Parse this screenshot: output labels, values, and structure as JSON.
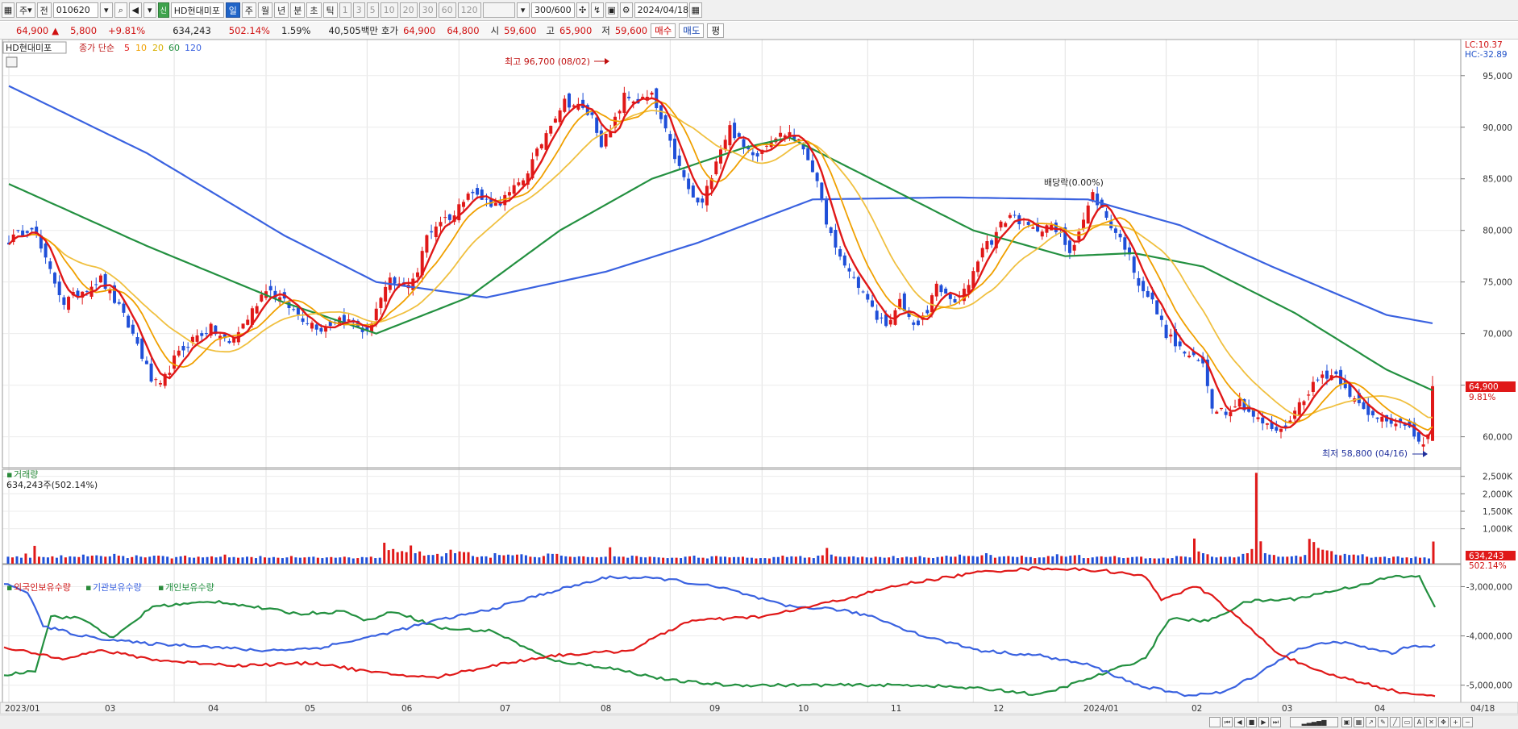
{
  "toolbar": {
    "period_type": "주",
    "market": "전",
    "code": "010620",
    "stock_name": "HD현대미포",
    "intervals": [
      "일",
      "주",
      "월",
      "년",
      "분",
      "초",
      "틱"
    ],
    "active_interval": "일",
    "minute_options": [
      "1",
      "3",
      "5",
      "10",
      "20",
      "30",
      "60",
      "120"
    ],
    "count": "300/600",
    "date": "2024/04/18"
  },
  "quote": {
    "price": "64,900",
    "change_arrow": "▲",
    "change": "5,800",
    "change_pct": "+9.81%",
    "volume": "634,243",
    "volume_ratio": "502.14%",
    "turnover": "1.59%",
    "amount": "40,505백만",
    "bid_label": "호가",
    "bid": "64,900",
    "ask": "64,800",
    "open_label": "시",
    "open": "59,600",
    "high_label": "고",
    "high": "65,900",
    "low_label": "저",
    "low": "59,600",
    "buy_label": "매수",
    "sell_label": "매도",
    "eval_label": "평"
  },
  "price_panel": {
    "legend_name": "HD현대미포",
    "legend_ma_title": "종가 단순",
    "ma_periods": [
      "5",
      "10",
      "20",
      "60",
      "120"
    ],
    "ma_colors": [
      "#e01818",
      "#f0a000",
      "#f0c040",
      "#239040",
      "#3a62e0"
    ],
    "lc": "LC:10.37",
    "hc": "HC:-32.89",
    "high_annotation": "최고 96,700 (08/02)",
    "low_annotation": "최저 58,800 (04/16)",
    "dividend_annotation": "배당락(0.00%)",
    "last_price_tag": "64,900",
    "last_pct_tag": "9.81%"
  },
  "volume_panel": {
    "title": "거래량",
    "value": "634,243주(502.14%)",
    "last_tag": "634,243",
    "last_pct_tag": "502.14%"
  },
  "holdings_panel": {
    "legend": [
      "외국인보유수량",
      "기관보유수량",
      "개인보유수량"
    ],
    "colors": [
      "#e01818",
      "#3a62e0",
      "#239040"
    ]
  },
  "chart_data": {
    "type": "candlestick",
    "x_labels": [
      "2023/01",
      "03",
      "04",
      "05",
      "06",
      "07",
      "08",
      "09",
      "10",
      "11",
      "12",
      "2024/01",
      "02",
      "03",
      "04",
      "04/18"
    ],
    "price_axis": {
      "ticks": [
        60000,
        65000,
        70000,
        75000,
        80000,
        85000,
        90000,
        95000
      ],
      "labels": [
        "60,000",
        "65,000",
        "70,000",
        "75,000",
        "80,000",
        "85,000",
        "90,000",
        "95,000"
      ],
      "range": [
        57000,
        98500
      ]
    },
    "volume_axis": {
      "ticks": [
        1000000,
        1500000,
        2000000,
        2500000
      ],
      "labels": [
        "1,000K",
        "1,500K",
        "2,000K",
        "2,500K"
      ],
      "range": [
        0,
        2700000
      ]
    },
    "holdings_axis": {
      "ticks": [
        -3000000,
        -4000000,
        -5000000
      ],
      "labels": [
        "-3,000,000",
        "-4,000,000",
        "-5,000,000"
      ],
      "range": [
        -5350000,
        -2550000
      ]
    },
    "close_anchors": [
      [
        0,
        79000
      ],
      [
        5,
        80500
      ],
      [
        8,
        77000
      ],
      [
        12,
        73000
      ],
      [
        16,
        74200
      ],
      [
        20,
        75300
      ],
      [
        24,
        72500
      ],
      [
        28,
        69000
      ],
      [
        31,
        65500
      ],
      [
        33,
        64800
      ],
      [
        36,
        67500
      ],
      [
        40,
        69500
      ],
      [
        44,
        70500
      ],
      [
        48,
        69000
      ],
      [
        52,
        71500
      ],
      [
        56,
        74500
      ],
      [
        60,
        73000
      ],
      [
        64,
        71500
      ],
      [
        68,
        70500
      ],
      [
        72,
        71500
      ],
      [
        75,
        71000
      ],
      [
        78,
        70000
      ],
      [
        80,
        72500
      ],
      [
        83,
        75000
      ],
      [
        86,
        74500
      ],
      [
        89,
        76000
      ],
      [
        91,
        79500
      ],
      [
        94,
        81000
      ],
      [
        97,
        81500
      ],
      [
        100,
        84000
      ],
      [
        103,
        83000
      ],
      [
        106,
        82500
      ],
      [
        109,
        83500
      ],
      [
        112,
        85000
      ],
      [
        115,
        87500
      ],
      [
        118,
        90500
      ],
      [
        121,
        92500
      ],
      [
        124,
        92000
      ],
      [
        127,
        91000
      ],
      [
        129,
        88500
      ],
      [
        131,
        89500
      ],
      [
        134,
        93000
      ],
      [
        137,
        92500
      ],
      [
        140,
        93000
      ],
      [
        143,
        89500
      ],
      [
        146,
        86000
      ],
      [
        149,
        83000
      ],
      [
        151,
        82500
      ],
      [
        154,
        87000
      ],
      [
        157,
        90000
      ],
      [
        160,
        88000
      ],
      [
        163,
        87500
      ],
      [
        166,
        89000
      ],
      [
        170,
        89500
      ],
      [
        173,
        88000
      ],
      [
        175,
        86000
      ],
      [
        178,
        81000
      ],
      [
        180,
        78000
      ],
      [
        183,
        76000
      ],
      [
        186,
        74000
      ],
      [
        189,
        71500
      ],
      [
        192,
        71000
      ],
      [
        194,
        73000
      ],
      [
        196,
        71500
      ],
      [
        198,
        70800
      ],
      [
        200,
        72000
      ],
      [
        202,
        75000
      ],
      [
        204,
        73500
      ],
      [
        206,
        73000
      ],
      [
        208,
        74000
      ],
      [
        210,
        76000
      ],
      [
        212,
        78500
      ],
      [
        214,
        79000
      ],
      [
        216,
        80500
      ],
      [
        218,
        81500
      ],
      [
        220,
        81000
      ],
      [
        223,
        80000
      ],
      [
        226,
        80500
      ],
      [
        229,
        79500
      ],
      [
        231,
        78000
      ],
      [
        234,
        81000
      ],
      [
        236,
        83500
      ],
      [
        238,
        82000
      ],
      [
        240,
        80500
      ],
      [
        243,
        78500
      ],
      [
        246,
        75000
      ],
      [
        249,
        73000
      ],
      [
        252,
        70000
      ],
      [
        255,
        68500
      ],
      [
        258,
        67500
      ],
      [
        260,
        67000
      ],
      [
        262,
        63000
      ],
      [
        265,
        62500
      ],
      [
        268,
        63500
      ],
      [
        271,
        62000
      ],
      [
        274,
        61000
      ],
      [
        277,
        60500
      ],
      [
        280,
        62500
      ],
      [
        283,
        64500
      ],
      [
        286,
        66000
      ],
      [
        289,
        66000
      ],
      [
        291,
        65000
      ],
      [
        293,
        63500
      ],
      [
        296,
        62000
      ],
      [
        299,
        62000
      ],
      [
        302,
        61500
      ],
      [
        305,
        60500
      ],
      [
        308,
        59300
      ],
      [
        309,
        60000
      ],
      [
        310,
        64900
      ]
    ],
    "ma120_anchors": [
      [
        0,
        94000
      ],
      [
        30,
        87500
      ],
      [
        60,
        79500
      ],
      [
        80,
        75000
      ],
      [
        104,
        73500
      ],
      [
        130,
        76000
      ],
      [
        150,
        78800
      ],
      [
        175,
        83000
      ],
      [
        205,
        83200
      ],
      [
        235,
        83000
      ],
      [
        255,
        80500
      ],
      [
        275,
        76500
      ],
      [
        300,
        71800
      ],
      [
        310,
        71000
      ]
    ],
    "ma60_anchors": [
      [
        0,
        84500
      ],
      [
        30,
        78500
      ],
      [
        60,
        73000
      ],
      [
        80,
        70000
      ],
      [
        100,
        73500
      ],
      [
        120,
        80000
      ],
      [
        140,
        85000
      ],
      [
        160,
        88000
      ],
      [
        170,
        89000
      ],
      [
        190,
        84500
      ],
      [
        210,
        80000
      ],
      [
        230,
        77500
      ],
      [
        245,
        77800
      ],
      [
        260,
        76500
      ],
      [
        280,
        72000
      ],
      [
        300,
        66500
      ],
      [
        310,
        64500
      ]
    ],
    "volume_bars_K": [
      200,
      180,
      210,
      170,
      290,
      170,
      510,
      200,
      190,
      180,
      210,
      170,
      240,
      180,
      210,
      200,
      190,
      260,
      210,
      230,
      240,
      220,
      200,
      210,
      280,
      230,
      220,
      160,
      190,
      240,
      200,
      180,
      200,
      230,
      230,
      220,
      200,
      150,
      190,
      210,
      230,
      180,
      170,
      200,
      180,
      190,
      210,
      180,
      200,
      260,
      180,
      190,
      170,
      180,
      200,
      190,
      160,
      220,
      180,
      170,
      190,
      170,
      160,
      180,
      220,
      180,
      170,
      180,
      190,
      200,
      170,
      160,
      180,
      190,
      170,
      180,
      200,
      180,
      150,
      160,
      190,
      180,
      200,
      160,
      170,
      600,
      390,
      420,
      330,
      360,
      330,
      520,
      300,
      350,
      230,
      250,
      250,
      280,
      210,
      300,
      400,
      300,
      350,
      330,
      330,
      220,
      190,
      210,
      210,
      170,
      300,
      250,
      240,
      260,
      240,
      260,
      270,
      240,
      200,
      190,
      180,
      220,
      290,
      280,
      280,
      230,
      210,
      200,
      190,
      210,
      210,
      190,
      190,
      180,
      190,
      200,
      470,
      210,
      200,
      200,
      170,
      230,
      220,
      190,
      180,
      200,
      190,
      180,
      170,
      160,
      170,
      170,
      160,
      200,
      210,
      230,
      170,
      170,
      150,
      210,
      220,
      200,
      200,
      180,
      190,
      190,
      200,
      170,
      170,
      150,
      160,
      160,
      150,
      190,
      190,
      230,
      190,
      210,
      200,
      220,
      170,
      180,
      160,
      230,
      240,
      450,
      260,
      210,
      200,
      190,
      200,
      210,
      180,
      200,
      180,
      170,
      200,
      190,
      170,
      180,
      220,
      160,
      180,
      200,
      180,
      190,
      220,
      180,
      170,
      160,
      190,
      200,
      230,
      200,
      200,
      260,
      220,
      220,
      220,
      200,
      240,
      300,
      250,
      170,
      200,
      210,
      220,
      200,
      190,
      230,
      190,
      190,
      160,
      180,
      180,
      220,
      210,
      270,
      220,
      200,
      230,
      240,
      250,
      160,
      160,
      180,
      200,
      210,
      190,
      200,
      220,
      180,
      160,
      170,
      190,
      200,
      200,
      150,
      160,
      150,
      150,
      170,
      150,
      160,
      220,
      210,
      200,
      180,
      720,
      350,
      300,
      270,
      200,
      180,
      200,
      190,
      200,
      180,
      200,
      280,
      300,
      420,
      2600,
      640,
      300,
      260,
      250,
      200,
      200,
      200,
      210,
      230,
      200,
      250,
      710,
      620,
      450,
      400,
      380,
      360,
      260,
      240,
      280,
      250,
      260,
      240,
      270,
      200,
      170,
      190,
      190,
      200,
      160,
      200,
      210,
      170,
      180,
      160,
      200,
      170,
      180,
      150,
      634
    ],
    "foreign_anchors": [
      [
        0,
        -4250000
      ],
      [
        15,
        -4450000
      ],
      [
        25,
        -4300000
      ],
      [
        40,
        -4500000
      ],
      [
        60,
        -4600000
      ],
      [
        80,
        -4550000
      ],
      [
        95,
        -4750000
      ],
      [
        110,
        -4850000
      ],
      [
        125,
        -4600000
      ],
      [
        140,
        -4400000
      ],
      [
        160,
        -4300000
      ],
      [
        175,
        -3700000
      ],
      [
        195,
        -3600000
      ],
      [
        215,
        -3250000
      ],
      [
        230,
        -2950000
      ],
      [
        250,
        -2700000
      ],
      [
        265,
        -2620000
      ],
      [
        282,
        -2680000
      ],
      [
        292,
        -2800000
      ],
      [
        296,
        -3250000
      ],
      [
        305,
        -3000000
      ],
      [
        310,
        -3250000
      ],
      [
        318,
        -3800000
      ],
      [
        325,
        -4300000
      ],
      [
        335,
        -4700000
      ],
      [
        350,
        -5000000
      ],
      [
        360,
        -5200000
      ]
    ],
    "institution_anchors": [
      [
        0,
        -2950000
      ],
      [
        6,
        -3100000
      ],
      [
        10,
        -3800000
      ],
      [
        20,
        -4000000
      ],
      [
        35,
        -4150000
      ],
      [
        50,
        -4200000
      ],
      [
        65,
        -4300000
      ],
      [
        80,
        -4250000
      ],
      [
        95,
        -4000000
      ],
      [
        110,
        -3700000
      ],
      [
        125,
        -3450000
      ],
      [
        140,
        -3100000
      ],
      [
        155,
        -2800000
      ],
      [
        170,
        -2850000
      ],
      [
        185,
        -3050000
      ],
      [
        200,
        -3400000
      ],
      [
        212,
        -3450000
      ],
      [
        222,
        -3600000
      ],
      [
        235,
        -4000000
      ],
      [
        250,
        -4300000
      ],
      [
        265,
        -4400000
      ],
      [
        278,
        -4600000
      ],
      [
        290,
        -5000000
      ],
      [
        302,
        -5200000
      ],
      [
        312,
        -5150000
      ],
      [
        320,
        -4800000
      ],
      [
        330,
        -4300000
      ],
      [
        340,
        -4100000
      ],
      [
        355,
        -4350000
      ],
      [
        360,
        -4200000
      ]
    ],
    "individual_anchors": [
      [
        0,
        -4800000
      ],
      [
        8,
        -4700000
      ],
      [
        12,
        -3600000
      ],
      [
        20,
        -3650000
      ],
      [
        28,
        -4050000
      ],
      [
        38,
        -3400000
      ],
      [
        55,
        -3300000
      ],
      [
        75,
        -3550000
      ],
      [
        88,
        -3500000
      ],
      [
        92,
        -3700000
      ],
      [
        100,
        -3500000
      ],
      [
        112,
        -3850000
      ],
      [
        125,
        -3900000
      ],
      [
        140,
        -4500000
      ],
      [
        155,
        -4650000
      ],
      [
        170,
        -4900000
      ],
      [
        185,
        -5000000
      ],
      [
        210,
        -5000000
      ],
      [
        235,
        -5000000
      ],
      [
        255,
        -5100000
      ],
      [
        265,
        -5200000
      ],
      [
        280,
        -4800000
      ],
      [
        292,
        -4450000
      ],
      [
        298,
        -3650000
      ],
      [
        308,
        -3700000
      ],
      [
        318,
        -3300000
      ],
      [
        330,
        -3250000
      ],
      [
        345,
        -3000000
      ],
      [
        355,
        -2800000
      ],
      [
        362,
        -2800000
      ],
      [
        366,
        -3400000
      ]
    ]
  }
}
